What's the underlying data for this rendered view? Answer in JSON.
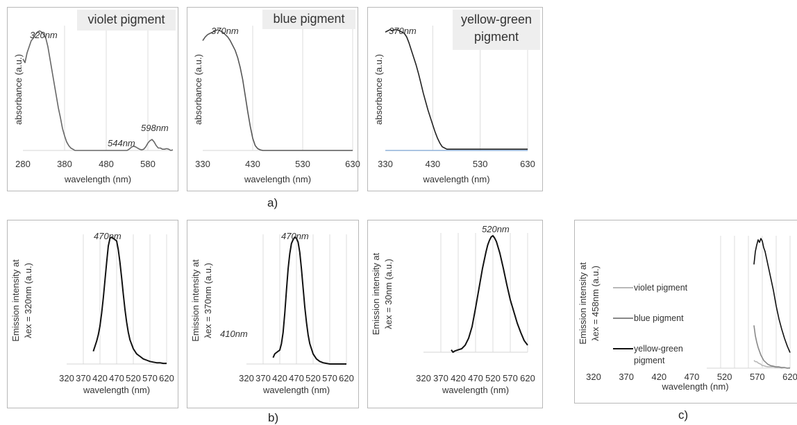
{
  "captions": {
    "a": "a)",
    "b": "b)",
    "c": "c)"
  },
  "chart_data": [
    {
      "id": "a1",
      "type": "line",
      "group": "a",
      "title": "violet pigment",
      "xlabel": "wavelength (nm)",
      "ylabel": "absorbance (a.u.)",
      "xlim": [
        280,
        640
      ],
      "xticks": [
        280,
        380,
        480,
        580
      ],
      "grid": true,
      "annotations": [
        {
          "text": "320nm",
          "x": 320
        },
        {
          "text": "544nm",
          "x": 544
        },
        {
          "text": "598nm",
          "x": 598
        }
      ],
      "series": [
        {
          "color": "#666666",
          "x": [
            280,
            285,
            290,
            295,
            300,
            305,
            310,
            315,
            320,
            325,
            330,
            335,
            340,
            345,
            350,
            355,
            360,
            365,
            370,
            375,
            380,
            385,
            390,
            395,
            400,
            405,
            410,
            415,
            420,
            430,
            440,
            450,
            460,
            470,
            480,
            490,
            500,
            510,
            520,
            530,
            535,
            540,
            545,
            550,
            555,
            560,
            565,
            570,
            575,
            580,
            585,
            590,
            595,
            600,
            605,
            610,
            615,
            620,
            625,
            630,
            635,
            640
          ],
          "y": [
            0.75,
            0.72,
            0.8,
            0.85,
            0.9,
            0.92,
            0.95,
            0.97,
            0.98,
            0.97,
            0.95,
            0.92,
            0.85,
            0.75,
            0.65,
            0.55,
            0.45,
            0.35,
            0.27,
            0.18,
            0.12,
            0.07,
            0.04,
            0.02,
            0.01,
            0.0,
            0.0,
            0.0,
            0.0,
            0.0,
            0.0,
            0.0,
            0.0,
            0.0,
            0.0,
            0.0,
            0.0,
            0.0,
            0.0,
            0.0,
            0.01,
            0.025,
            0.035,
            0.03,
            0.02,
            0.01,
            0.005,
            0.01,
            0.03,
            0.06,
            0.08,
            0.09,
            0.07,
            0.04,
            0.02,
            0.02,
            0.01,
            0.01,
            0.015,
            0.01,
            0.0,
            0.005
          ]
        }
      ]
    },
    {
      "id": "a2",
      "type": "line",
      "group": "a",
      "title": "blue pigment",
      "xlabel": "wavelength (nm)",
      "ylabel": "absorbance (a.u.)",
      "xlim": [
        330,
        630
      ],
      "xticks": [
        330,
        430,
        530,
        630
      ],
      "grid": true,
      "annotations": [
        {
          "text": "370nm",
          "x": 370
        }
      ],
      "series": [
        {
          "color": "#555555",
          "x": [
            330,
            335,
            340,
            345,
            350,
            355,
            360,
            365,
            370,
            375,
            380,
            385,
            390,
            395,
            400,
            405,
            410,
            415,
            420,
            425,
            430,
            435,
            440,
            445,
            450,
            455,
            460,
            470,
            480,
            500,
            530,
            560,
            590,
            630
          ],
          "y": [
            0.9,
            0.93,
            0.95,
            0.96,
            0.97,
            0.98,
            0.99,
            0.98,
            0.97,
            0.95,
            0.93,
            0.9,
            0.86,
            0.82,
            0.76,
            0.68,
            0.58,
            0.45,
            0.32,
            0.2,
            0.1,
            0.04,
            0.015,
            0.005,
            0.0,
            0.0,
            0.0,
            0.0,
            0.0,
            0.0,
            0.0,
            0.0,
            0.0,
            0.0
          ]
        }
      ]
    },
    {
      "id": "a3",
      "type": "line",
      "group": "a",
      "title": "yellow-green pigment",
      "xlabel": "wavelength (nm)",
      "ylabel": "absorbance (a.u.)",
      "xlim": [
        330,
        630
      ],
      "xticks": [
        330,
        430,
        530,
        630
      ],
      "grid": true,
      "annotations": [
        {
          "text": "370nm",
          "x": 370
        }
      ],
      "series": [
        {
          "color": "#8fb0d8",
          "x": [
            330,
            630
          ],
          "y": [
            0.0,
            0.0
          ]
        },
        {
          "color": "#222222",
          "x": [
            330,
            335,
            340,
            345,
            350,
            355,
            360,
            365,
            370,
            375,
            380,
            385,
            390,
            395,
            400,
            405,
            410,
            415,
            420,
            425,
            430,
            435,
            440,
            445,
            450,
            455,
            460,
            470,
            480,
            500,
            530,
            560,
            590,
            630
          ],
          "y": [
            0.97,
            0.98,
            0.99,
            0.98,
            0.99,
            0.99,
            0.98,
            0.97,
            0.96,
            0.93,
            0.88,
            0.82,
            0.76,
            0.7,
            0.63,
            0.55,
            0.47,
            0.4,
            0.33,
            0.27,
            0.21,
            0.15,
            0.1,
            0.06,
            0.03,
            0.02,
            0.01,
            0.01,
            0.01,
            0.01,
            0.01,
            0.01,
            0.01,
            0.01
          ]
        }
      ]
    },
    {
      "id": "b1",
      "type": "line",
      "group": "b",
      "xlabel": "wavelength (nm)",
      "ylabel": [
        "Emission intensity at",
        "λex = 320nm (a.u.)"
      ],
      "xlim": [
        320,
        620
      ],
      "xticks": [
        320,
        370,
        420,
        470,
        520,
        570,
        620
      ],
      "grid": true,
      "annotations": [
        {
          "text": "470nm",
          "x": 470
        }
      ],
      "series": [
        {
          "color": "#111111",
          "x": [
            400,
            405,
            410,
            415,
            420,
            425,
            430,
            435,
            440,
            445,
            450,
            455,
            460,
            465,
            470,
            475,
            480,
            485,
            490,
            495,
            500,
            505,
            510,
            520,
            530,
            540,
            550,
            560,
            570,
            580,
            590,
            600,
            610,
            620
          ],
          "y": [
            0.1,
            0.14,
            0.18,
            0.23,
            0.3,
            0.4,
            0.52,
            0.66,
            0.8,
            0.93,
            0.99,
            1.0,
            0.99,
            0.98,
            0.97,
            0.9,
            0.8,
            0.68,
            0.55,
            0.43,
            0.33,
            0.25,
            0.19,
            0.12,
            0.08,
            0.06,
            0.04,
            0.03,
            0.02,
            0.015,
            0.01,
            0.01,
            0.005,
            0.005
          ]
        }
      ]
    },
    {
      "id": "b2",
      "type": "line",
      "group": "b",
      "xlabel": "wavelength (nm)",
      "ylabel": [
        "Emission intensity at",
        "λex = 370nm  (a.u.)"
      ],
      "xlim": [
        320,
        620
      ],
      "xticks": [
        320,
        370,
        420,
        470,
        520,
        570,
        620
      ],
      "grid": true,
      "annotations": [
        {
          "text": "470nm",
          "x": 470
        },
        {
          "text": "410nm",
          "x": 410
        }
      ],
      "series": [
        {
          "color": "#111111",
          "x": [
            400,
            405,
            410,
            415,
            420,
            425,
            430,
            435,
            440,
            445,
            450,
            455,
            460,
            465,
            470,
            475,
            480,
            485,
            490,
            495,
            500,
            505,
            510,
            520,
            530,
            540,
            550,
            560,
            570,
            580,
            590,
            600,
            620
          ],
          "y": [
            0.05,
            0.08,
            0.09,
            0.1,
            0.11,
            0.16,
            0.25,
            0.4,
            0.58,
            0.75,
            0.87,
            0.95,
            0.98,
            1.0,
            0.99,
            0.96,
            0.88,
            0.75,
            0.6,
            0.45,
            0.33,
            0.23,
            0.16,
            0.08,
            0.04,
            0.02,
            0.01,
            0.005,
            0.0,
            0.0,
            0.0,
            0.0,
            0.0
          ]
        }
      ]
    },
    {
      "id": "b3",
      "type": "line",
      "group": "b",
      "xlabel": "wavelength (nm)",
      "ylabel": [
        "Emission intensity at",
        "λex = 30nm  (a.u.)"
      ],
      "xlim": [
        320,
        620
      ],
      "xticks": [
        320,
        370,
        420,
        470,
        520,
        570,
        620
      ],
      "grid": true,
      "annotations": [
        {
          "text": "520nm",
          "x": 520
        }
      ],
      "series": [
        {
          "color": "#111111",
          "x": [
            400,
            405,
            410,
            420,
            430,
            440,
            450,
            460,
            470,
            480,
            490,
            500,
            505,
            510,
            515,
            520,
            525,
            530,
            540,
            550,
            560,
            570,
            580,
            590,
            600,
            610,
            620
          ],
          "y": [
            0.02,
            0.0,
            0.01,
            0.02,
            0.03,
            0.06,
            0.12,
            0.22,
            0.38,
            0.55,
            0.72,
            0.86,
            0.92,
            0.96,
            0.99,
            1.0,
            0.98,
            0.95,
            0.85,
            0.72,
            0.58,
            0.45,
            0.35,
            0.25,
            0.17,
            0.1,
            0.06
          ]
        }
      ]
    },
    {
      "id": "c",
      "type": "line",
      "group": "c",
      "xlabel": "wavelength (nm)",
      "ylabel": [
        "Emission intensity at",
        "λex = 458nm (a.u.)"
      ],
      "xlim": [
        320,
        620
      ],
      "xticks": [
        320,
        370,
        420,
        470,
        520,
        570,
        620
      ],
      "grid": true,
      "legend": "left",
      "series": [
        {
          "name": "violet pigment",
          "color": "#b8b8b8",
          "x": [
            490,
            495,
            500,
            505,
            510,
            515,
            520,
            525,
            530,
            540,
            550,
            560,
            570,
            580,
            590,
            600,
            610,
            620
          ],
          "y": [
            0.06,
            0.05,
            0.05,
            0.04,
            0.035,
            0.03,
            0.02,
            0.02,
            0.015,
            0.01,
            0.01,
            0.01,
            0.005,
            0.005,
            0.0,
            0.005,
            0.0,
            0.005
          ]
        },
        {
          "name": "blue pigment",
          "color": "#888888",
          "x": [
            490,
            495,
            500,
            505,
            510,
            515,
            520,
            525,
            530,
            540,
            550,
            560,
            570,
            580,
            590,
            600,
            610,
            620
          ],
          "y": [
            0.33,
            0.25,
            0.2,
            0.16,
            0.13,
            0.1,
            0.08,
            0.06,
            0.05,
            0.03,
            0.02,
            0.015,
            0.01,
            0.01,
            0.005,
            0.005,
            0.0,
            0.0
          ]
        },
        {
          "name": [
            "yellow-green",
            "pigment"
          ],
          "color": "#111111",
          "x": [
            490,
            495,
            500,
            505,
            510,
            515,
            520,
            525,
            530,
            540,
            550,
            560,
            570,
            580,
            590,
            600,
            610,
            620
          ],
          "y": [
            0.8,
            0.9,
            0.95,
            0.99,
            0.97,
            1.0,
            0.98,
            0.93,
            0.9,
            0.8,
            0.7,
            0.6,
            0.48,
            0.38,
            0.3,
            0.23,
            0.17,
            0.12
          ]
        }
      ]
    }
  ]
}
